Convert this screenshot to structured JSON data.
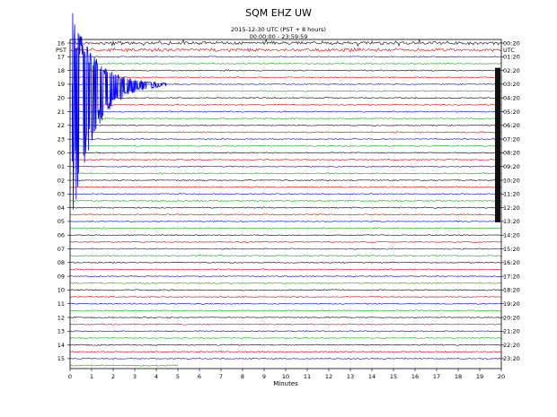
{
  "title": "SQM EHZ UW",
  "subtitle": [
    "2015-12-30 UTC (PST + 8 hours)",
    "00:00:00 - 23:59:59"
  ],
  "chart_data": {
    "type": "line",
    "title": "SQM EHZ UW",
    "xlabel": "Minutes",
    "x_ticks": [
      "0",
      "1",
      "2",
      "3",
      "4",
      "5",
      "6",
      "7",
      "8",
      "9",
      "10",
      "11",
      "12",
      "13",
      "14",
      "15",
      "16",
      "17",
      "18",
      "19",
      "20"
    ],
    "xlim": [
      0,
      20
    ],
    "left_axis_title": "PST",
    "right_axis_title": "UTC",
    "left_labels": [
      "16",
      "17",
      "18",
      "19",
      "20",
      "21",
      "22",
      "23",
      "00",
      "01",
      "02",
      "03",
      "04",
      "05",
      "06",
      "07",
      "08",
      "09",
      "10",
      "11",
      "12",
      "13",
      "14",
      "15"
    ],
    "right_labels": [
      "00:20",
      "01:20",
      "02:20",
      "03:20",
      "04:20",
      "05:20",
      "06:20",
      "07:20",
      "08:20",
      "09:20",
      "10:20",
      "11:20",
      "12:20",
      "13:20",
      "14:20",
      "15:20",
      "16:20",
      "17:20",
      "18:20",
      "19:20",
      "20:20",
      "21:20",
      "22:20",
      "23:20"
    ],
    "trace_colors": [
      "#000000",
      "#cc0000",
      "#0000cc",
      "#00aa00"
    ],
    "traces_recorded": 48,
    "partial_last_trace_minutes": 5,
    "event": {
      "trace_index": 6,
      "x_minutes": 0.1,
      "coda_end_minutes": 4.5,
      "color": "#0000ff"
    },
    "right_edge_marks_hours": [
      2,
      13
    ]
  }
}
